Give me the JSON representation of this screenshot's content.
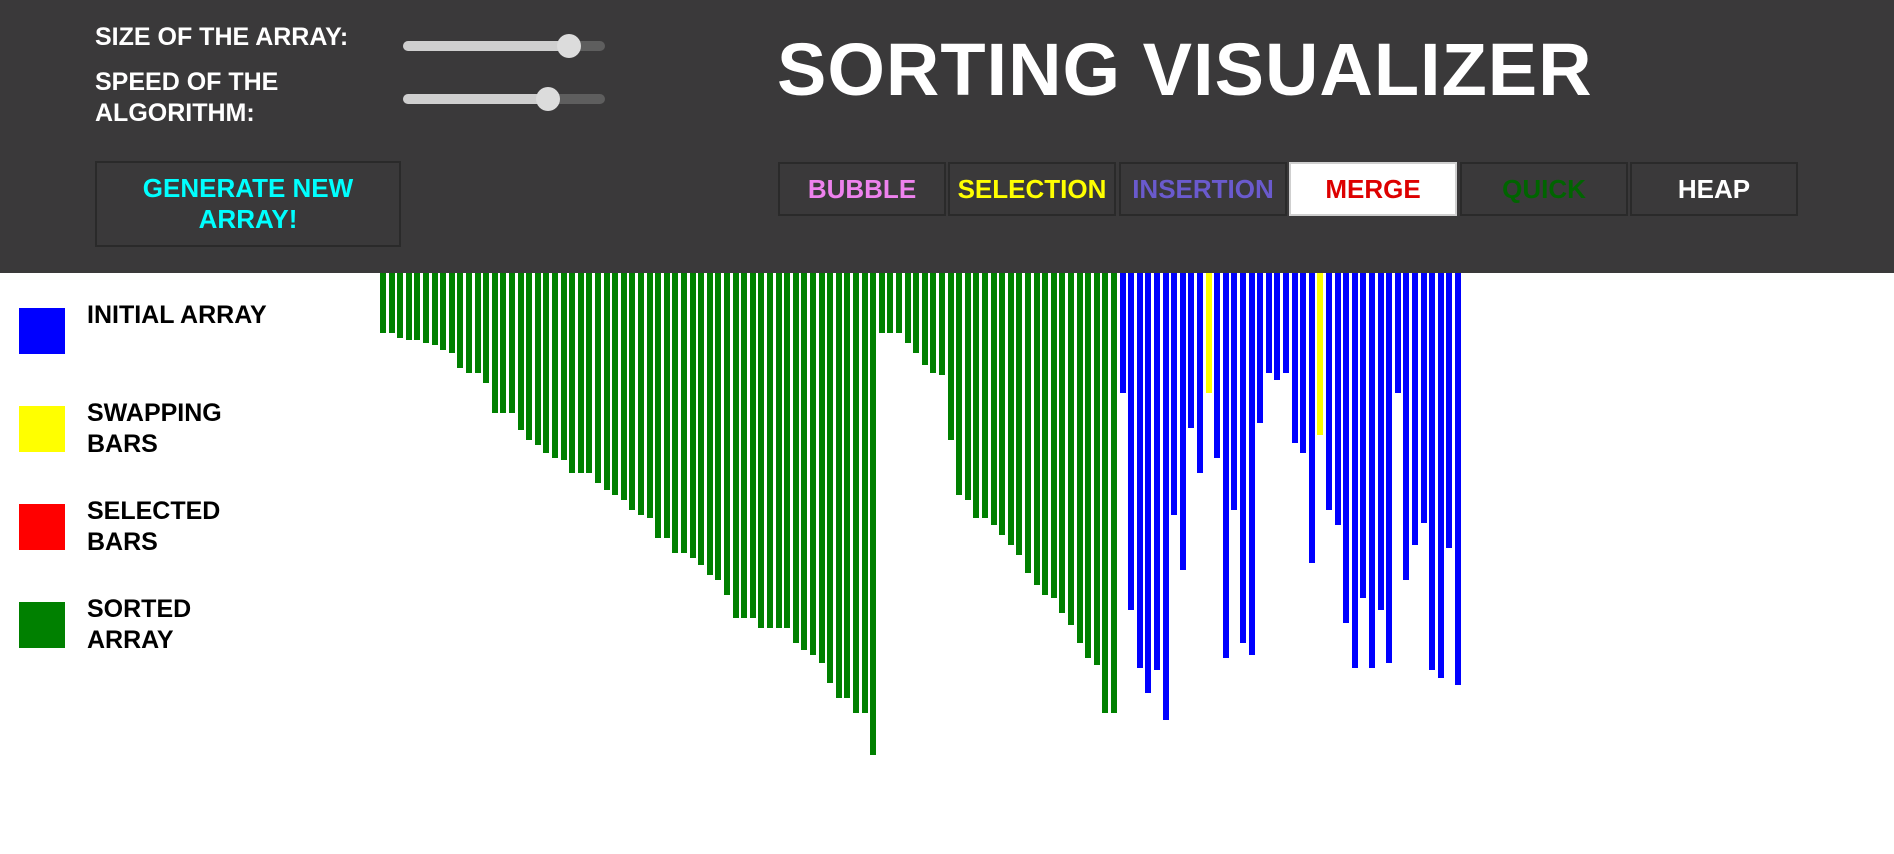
{
  "header": {
    "title": "SORTING VISUALIZER",
    "size_label": "SIZE OF THE ARRAY:",
    "speed_label": "SPEED OF THE ALGORITHM:",
    "size_value": 0.82,
    "speed_value": 0.72,
    "generate_label": "GENERATE NEW ARRAY!"
  },
  "algorithms": [
    {
      "label": "BUBBLE",
      "color": "#ee82ee",
      "active": false
    },
    {
      "label": "SELECTION",
      "color": "#ffff00",
      "active": false
    },
    {
      "label": "INSERTION",
      "color": "#6a5acd",
      "active": false
    },
    {
      "label": "MERGE",
      "color": "#dd0000",
      "active": true
    },
    {
      "label": "QUICK",
      "color": "#006400",
      "active": false
    },
    {
      "label": "HEAP",
      "color": "#ffffff",
      "active": false
    }
  ],
  "legend": [
    {
      "label": "INITIAL ARRAY",
      "color": "#0000ff"
    },
    {
      "label": "SWAPPING BARS",
      "color": "#ffff00"
    },
    {
      "label": "SELECTED BARS",
      "color": "#ff0000"
    },
    {
      "label": "SORTED ARRAY",
      "color": "#008000"
    }
  ],
  "colors": {
    "header_bg": "#3a393a",
    "initial": "#0000ff",
    "swapping": "#ffff00",
    "selected": "#ff0000",
    "sorted": "#008000"
  },
  "array": {
    "heights": [
      60,
      60,
      65,
      67,
      67,
      70,
      72,
      77,
      80,
      95,
      100,
      100,
      110,
      140,
      140,
      140,
      157,
      167,
      172,
      180,
      185,
      187,
      200,
      200,
      200,
      210,
      217,
      222,
      227,
      237,
      242,
      245,
      265,
      265,
      280,
      280,
      285,
      292,
      302,
      307,
      322,
      345,
      345,
      345,
      355,
      355,
      355,
      355,
      370,
      377,
      382,
      390,
      410,
      425,
      425,
      440,
      440,
      482,
      60,
      60,
      60,
      70,
      80,
      92,
      100,
      102,
      167,
      222,
      227,
      245,
      245,
      252,
      262,
      272,
      282,
      300,
      312,
      322,
      325,
      340,
      352,
      370,
      385,
      392,
      440,
      440,
      120,
      337,
      395,
      420,
      397,
      447,
      242,
      297,
      155,
      200,
      120,
      185,
      385,
      237,
      370,
      382,
      150,
      100,
      107,
      100,
      170,
      180,
      290,
      162,
      237,
      252,
      350,
      395,
      325,
      395,
      337,
      390,
      120,
      307,
      272,
      250,
      397,
      405,
      275,
      412
    ],
    "states": [
      "sorted",
      "sorted",
      "sorted",
      "sorted",
      "sorted",
      "sorted",
      "sorted",
      "sorted",
      "sorted",
      "sorted",
      "sorted",
      "sorted",
      "sorted",
      "sorted",
      "sorted",
      "sorted",
      "sorted",
      "sorted",
      "sorted",
      "sorted",
      "sorted",
      "sorted",
      "sorted",
      "sorted",
      "sorted",
      "sorted",
      "sorted",
      "sorted",
      "sorted",
      "sorted",
      "sorted",
      "sorted",
      "sorted",
      "sorted",
      "sorted",
      "sorted",
      "sorted",
      "sorted",
      "sorted",
      "sorted",
      "sorted",
      "sorted",
      "sorted",
      "sorted",
      "sorted",
      "sorted",
      "sorted",
      "sorted",
      "sorted",
      "sorted",
      "sorted",
      "sorted",
      "sorted",
      "sorted",
      "sorted",
      "sorted",
      "sorted",
      "sorted",
      "sorted",
      "sorted",
      "sorted",
      "sorted",
      "sorted",
      "sorted",
      "sorted",
      "sorted",
      "sorted",
      "sorted",
      "sorted",
      "sorted",
      "sorted",
      "sorted",
      "sorted",
      "sorted",
      "sorted",
      "sorted",
      "sorted",
      "sorted",
      "sorted",
      "sorted",
      "sorted",
      "sorted",
      "sorted",
      "sorted",
      "sorted",
      "sorted",
      "initial",
      "initial",
      "initial",
      "initial",
      "initial",
      "initial",
      "initial",
      "initial",
      "initial",
      "initial",
      "swapping",
      "initial",
      "initial",
      "initial",
      "initial",
      "initial",
      "initial",
      "initial",
      "initial",
      "initial",
      "initial",
      "initial",
      "initial",
      "swapping",
      "initial",
      "initial",
      "initial",
      "initial",
      "initial",
      "initial",
      "initial",
      "initial",
      "initial",
      "initial",
      "initial",
      "initial",
      "initial",
      "initial",
      "initial",
      "initial",
      "initial",
      "initial",
      "initial",
      "initial"
    ]
  }
}
